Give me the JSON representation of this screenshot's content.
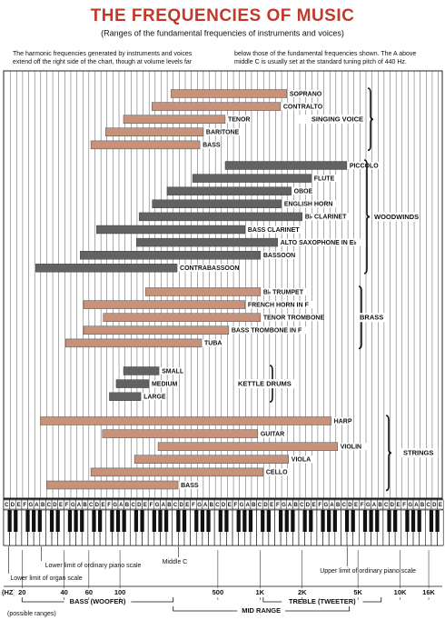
{
  "chart_data": {
    "type": "range-bar",
    "title": "THE FREQUENCIES OF MUSIC",
    "subtitle": "(Ranges of the fundamental frequencies of instruments and voices)",
    "note": [
      "The harmonic frequencies generated by instruments and voices extend off the right side of the chart, though at volume levels far",
      "below those of the fundamental frequencies shown. The A above middle C is usually set at the standard tuning pitch of 440 Hz."
    ],
    "log_scale": true,
    "xlim": [
      15,
      20000
    ],
    "x_unit": "(HZ)",
    "xticks": [
      20,
      40,
      60,
      100,
      500,
      {
        "value": 1000,
        "label": "1K"
      },
      {
        "value": 2000,
        "label": "2K"
      },
      {
        "value": 5000,
        "label": "5K"
      },
      {
        "value": 10000,
        "label": "10K"
      },
      {
        "value": 16000,
        "label": "16K"
      }
    ],
    "groups": [
      {
        "name": "SINGING VOICE",
        "color": "#c8917a",
        "items": [
          {
            "label": "SOPRANO",
            "low": 231,
            "high": 1554
          },
          {
            "label": "CONTRALTO",
            "low": 169,
            "high": 1400
          },
          {
            "label": "TENOR",
            "low": 106,
            "high": 564
          },
          {
            "label": "BARITONE",
            "low": 79,
            "high": 394
          },
          {
            "label": "BASS",
            "low": 62,
            "high": 372
          }
        ]
      },
      {
        "name": "WOODWINDS",
        "color": "#626262",
        "items": [
          {
            "label": "PICCOLO",
            "low": 564,
            "high": 4160
          },
          {
            "label": "FLUTE",
            "low": 330,
            "high": 2320
          },
          {
            "label": "OBOE",
            "low": 217,
            "high": 1670
          },
          {
            "label": "ENGLISH HORN",
            "low": 170,
            "high": 1420
          },
          {
            "label": "B♭ CLARINET",
            "low": 137,
            "high": 2000
          },
          {
            "label": "BASS CLARINET",
            "low": 68,
            "high": 782
          },
          {
            "label": "ALTO SAXOPHONE IN E♭",
            "low": 131,
            "high": 1336
          },
          {
            "label": "BASSOON",
            "low": 52,
            "high": 1008
          },
          {
            "label": "CONTRABASSOON",
            "low": 25,
            "high": 256
          }
        ]
      },
      {
        "name": "BRASS",
        "color": "#c8917a",
        "items": [
          {
            "label": "B♭ TRUMPET",
            "low": 152,
            "high": 1008
          },
          {
            "label": "FRENCH HORN IN F",
            "low": 55,
            "high": 782
          },
          {
            "label": "TENOR TROMBONE",
            "low": 76,
            "high": 1008
          },
          {
            "label": "BASS TROMBONE IN F",
            "low": 55,
            "high": 598
          },
          {
            "label": "TUBA",
            "low": 41,
            "high": 383
          }
        ]
      },
      {
        "name": "KETTLE DRUMS",
        "color": "#626262",
        "items": [
          {
            "label": "SMALL",
            "low": 106,
            "high": 190
          },
          {
            "label": "MEDIUM",
            "low": 94,
            "high": 161
          },
          {
            "label": "LARGE",
            "low": 84,
            "high": 141
          }
        ]
      },
      {
        "name": "STRINGS",
        "color": "#c8917a",
        "items": [
          {
            "label": "HARP",
            "low": 27,
            "high": 3220
          },
          {
            "label": "GUITAR",
            "low": 75,
            "high": 964
          },
          {
            "label": "VIOLIN",
            "low": 187,
            "high": 3580
          },
          {
            "label": "VIOLA",
            "low": 127,
            "high": 1600
          },
          {
            "label": "CELLO",
            "low": 62,
            "high": 1054
          },
          {
            "label": "BASS",
            "low": 30,
            "high": 260
          }
        ]
      }
    ],
    "key_letters": [
      "C",
      "D",
      "E",
      "F",
      "G",
      "A",
      "B"
    ],
    "annotations": [
      {
        "text": "Lower limit of organ scale",
        "x": 16
      },
      {
        "text": "Lower limit of ordinary piano scale",
        "x": 27.5
      },
      {
        "text": "Middle C",
        "x": 262
      },
      {
        "text": "Upper limit of ordinary piano scale",
        "x": 4186
      }
    ],
    "bands": [
      {
        "label": "BASS (WOOFER)",
        "low": 20,
        "high": 240
      },
      {
        "label": "MID RANGE",
        "low": 240,
        "high": 4340
      },
      {
        "label": "TREBLE (TWEETER)",
        "low": 1054,
        "high": 7330
      }
    ],
    "bands_note": "(possible ranges)"
  }
}
